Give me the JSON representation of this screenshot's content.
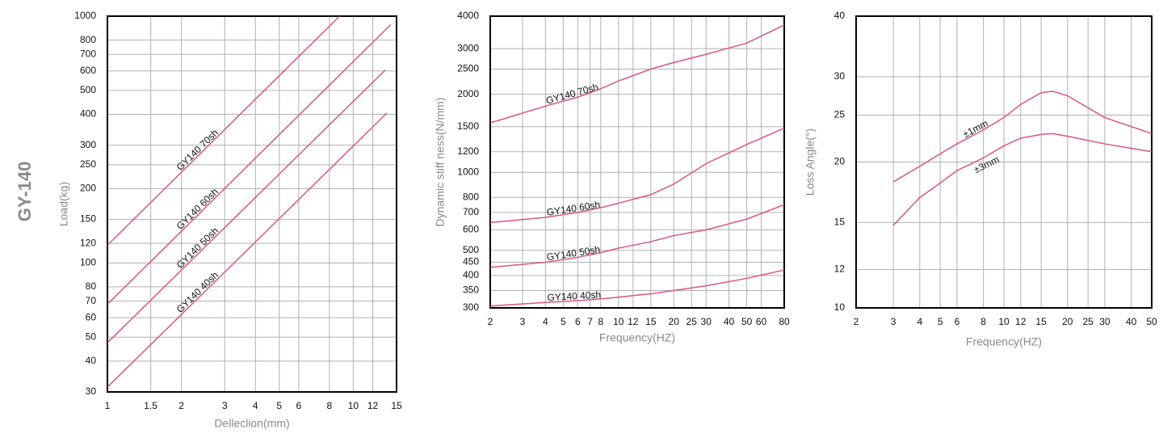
{
  "title": "GY-140",
  "chart_data": [
    {
      "type": "line",
      "xlabel": "Delleclion(mm)",
      "ylabel": "Load(kg)",
      "xscale": "log",
      "yscale": "log",
      "grid": true,
      "color": "#d9577a",
      "xlim": [
        1,
        15
      ],
      "ylim": [
        30,
        1000
      ],
      "xticks": [
        1,
        1.5,
        2,
        3,
        4,
        5,
        6,
        8,
        10,
        12,
        15
      ],
      "yticks": [
        30,
        40,
        50,
        60,
        70,
        80,
        100,
        120,
        150,
        200,
        250,
        300,
        400,
        500,
        600,
        700,
        800,
        1000
      ],
      "series": [
        {
          "name": "GY140 70sh",
          "x": [
            1,
            8.8
          ],
          "values": [
            118,
            1000
          ]
        },
        {
          "name": "GY140 60sh",
          "x": [
            1,
            14.2
          ],
          "values": [
            68,
            924
          ]
        },
        {
          "name": "GY140 50sh",
          "x": [
            1,
            13.5
          ],
          "values": [
            47.5,
            605
          ]
        },
        {
          "name": "GY140 40sh",
          "x": [
            1,
            13.7
          ],
          "values": [
            31.4,
            405
          ]
        }
      ]
    },
    {
      "type": "line",
      "xlabel": "Frequency(HZ)",
      "ylabel": "Dynamic stiff ness(N/mm)",
      "xscale": "log",
      "yscale": "log",
      "grid": true,
      "color": "#d9577a",
      "xlim": [
        2,
        80
      ],
      "ylim": [
        300,
        4000
      ],
      "xticks": [
        2,
        3,
        4,
        5,
        6,
        7,
        8,
        10,
        12,
        15,
        20,
        25,
        30,
        40,
        50,
        60,
        80
      ],
      "yticks": [
        300,
        350,
        400,
        450,
        500,
        600,
        700,
        800,
        1000,
        1200,
        1500,
        2000,
        2500,
        3000,
        4000
      ],
      "x": [
        2,
        4,
        6,
        8,
        10,
        15,
        20,
        30,
        50,
        80
      ],
      "series": [
        {
          "name": "GY140 70sh",
          "values": [
            1550,
            1800,
            1950,
            2100,
            2250,
            2500,
            2650,
            2850,
            3150,
            3700
          ]
        },
        {
          "name": "GY140 60sh",
          "values": [
            640,
            670,
            700,
            730,
            760,
            820,
            900,
            1080,
            1280,
            1480
          ]
        },
        {
          "name": "GY140 50sh",
          "values": [
            430,
            450,
            470,
            490,
            510,
            540,
            570,
            600,
            660,
            750
          ]
        },
        {
          "name": "GY140 40sh",
          "values": [
            305,
            315,
            320,
            325,
            330,
            340,
            350,
            365,
            390,
            420
          ]
        }
      ]
    },
    {
      "type": "line",
      "xlabel": "Frequency(HZ)",
      "ylabel": "Loss Angle(°)",
      "xscale": "log",
      "yscale": "log",
      "grid": true,
      "color": "#d9577a",
      "xlim": [
        2,
        50
      ],
      "ylim": [
        10,
        40
      ],
      "xticks": [
        2,
        3,
        4,
        5,
        6,
        8,
        10,
        12,
        15,
        20,
        25,
        30,
        40,
        50
      ],
      "yticks": [
        10,
        12,
        15,
        20,
        25,
        30,
        40
      ],
      "x": [
        3,
        4,
        5,
        6,
        8,
        10,
        12,
        15,
        17,
        20,
        30,
        50
      ],
      "series": [
        {
          "name": "±1mm",
          "values": [
            18.2,
            19.6,
            20.8,
            21.8,
            23.3,
            24.7,
            26.3,
            27.8,
            28,
            27.4,
            24.7,
            22.9
          ]
        },
        {
          "name": "±3mm",
          "values": [
            14.8,
            16.9,
            18.1,
            19.2,
            20.4,
            21.6,
            22.4,
            22.8,
            22.9,
            22.6,
            21.8,
            21
          ]
        }
      ]
    }
  ]
}
